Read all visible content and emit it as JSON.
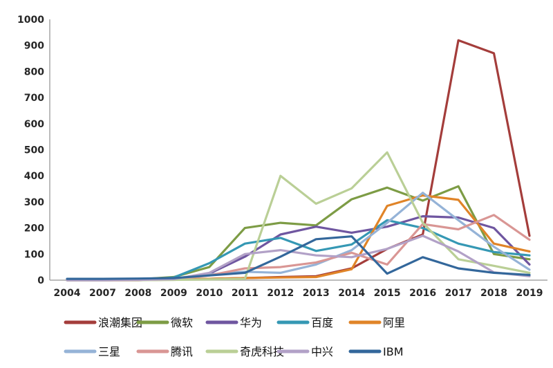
{
  "chart_data": {
    "type": "line",
    "title": "",
    "xlabel": "",
    "ylabel": "",
    "categories": [
      "2004",
      "2007",
      "2008",
      "2009",
      "2010",
      "2011",
      "2012",
      "2013",
      "2014",
      "2015",
      "2016",
      "2017",
      "2018",
      "2019"
    ],
    "ylim": [
      0,
      1000
    ],
    "ytick_step": 100,
    "y_tick_labels": [
      "0",
      "100",
      "200",
      "300",
      "400",
      "500",
      "600",
      "700",
      "800",
      "900",
      "1000"
    ],
    "grid": false,
    "legend_position": "bottom",
    "axis_color": "#a6a6a6",
    "tick_text_color": "#262626",
    "series": [
      {
        "name": "浪潮集团",
        "color": "#a43d3b",
        "values": [
          0,
          0,
          0,
          2,
          5,
          8,
          12,
          15,
          45,
          120,
          175,
          920,
          870,
          170
        ]
      },
      {
        "name": "微软",
        "color": "#7d9c45",
        "values": [
          2,
          2,
          3,
          12,
          50,
          200,
          220,
          210,
          310,
          355,
          305,
          360,
          100,
          80
        ]
      },
      {
        "name": "华为",
        "color": "#6f56a0",
        "values": [
          0,
          0,
          1,
          5,
          25,
          90,
          175,
          205,
          182,
          205,
          245,
          240,
          200,
          60
        ]
      },
      {
        "name": "百度",
        "color": "#3598b4",
        "values": [
          0,
          0,
          1,
          10,
          65,
          140,
          162,
          112,
          137,
          230,
          200,
          140,
          108,
          95
        ]
      },
      {
        "name": "阿里",
        "color": "#e08428",
        "values": [
          0,
          0,
          0,
          2,
          5,
          8,
          10,
          12,
          42,
          285,
          325,
          308,
          140,
          110
        ]
      },
      {
        "name": "三星",
        "color": "#95b3d7",
        "values": [
          0,
          0,
          1,
          4,
          22,
          32,
          28,
          60,
          115,
          220,
          335,
          230,
          128,
          40
        ]
      },
      {
        "name": "腾讯",
        "color": "#d99694",
        "values": [
          0,
          0,
          1,
          3,
          18,
          45,
          50,
          68,
          105,
          60,
          215,
          195,
          250,
          155
        ]
      },
      {
        "name": "奇虎科技",
        "color": "#bacf96",
        "values": [
          0,
          0,
          0,
          1,
          3,
          5,
          400,
          293,
          352,
          490,
          220,
          80,
          55,
          28
        ]
      },
      {
        "name": "中兴",
        "color": "#b2a1c7",
        "values": [
          0,
          0,
          1,
          4,
          28,
          100,
          115,
          95,
          88,
          120,
          170,
          110,
          30,
          15
        ]
      },
      {
        "name": "IBM",
        "color": "#33679b",
        "values": [
          5,
          5,
          6,
          8,
          18,
          28,
          90,
          157,
          168,
          25,
          88,
          45,
          28,
          20
        ]
      }
    ],
    "legend_rows": [
      [
        "浪潮集团",
        "微软",
        "华为",
        "百度",
        "阿里"
      ],
      [
        "三星",
        "腾讯",
        "奇虎科技",
        "中兴",
        "IBM"
      ]
    ]
  }
}
